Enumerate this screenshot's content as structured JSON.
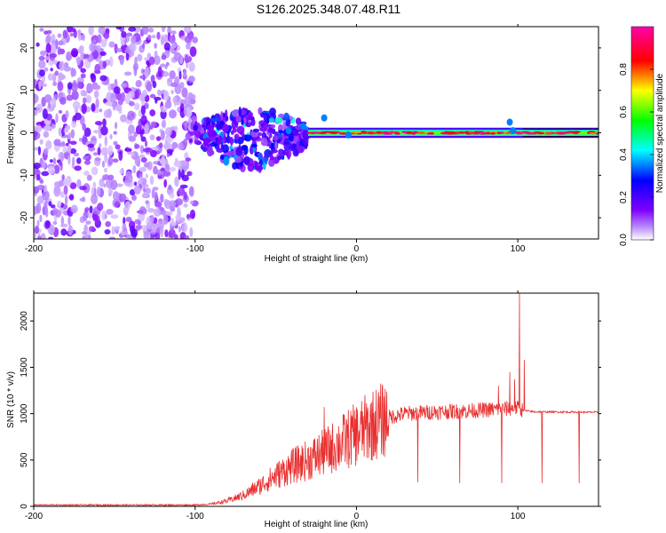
{
  "title": "S126.2025.348.07.48.R11",
  "chart_data": [
    {
      "type": "heatmap",
      "panel": "top",
      "xlabel": "Height of straight line (km)",
      "ylabel": "Frequency (Hz)",
      "xlim": [
        -200,
        150
      ],
      "ylim": [
        -25,
        25
      ],
      "x_ticks": [
        -200,
        -100,
        0,
        100
      ],
      "x_tick_labels": [
        "-200",
        "-100",
        "0",
        "100"
      ],
      "y_ticks": [
        -20,
        -10,
        0,
        10,
        20
      ],
      "y_tick_labels": [
        "-20",
        "-10",
        "0",
        "10",
        "20"
      ],
      "colorbar": {
        "label": "Normalized spectral amplitude",
        "range": [
          0,
          1
        ],
        "ticks": [
          0.0,
          0.2,
          0.4,
          0.6,
          0.8
        ],
        "tick_labels": [
          "0.0",
          "0.2",
          "0.4",
          "0.6",
          "0.8"
        ],
        "colors": [
          "#ffffff",
          "#7f00ff",
          "#0000ff",
          "#00ffff",
          "#00ff00",
          "#ffff00",
          "#ff0000",
          "#ff00ff"
        ]
      },
      "regions": [
        {
          "x": [
            -200,
            -100
          ],
          "freq_spread": 25,
          "description": "noise blobs",
          "amplitude": [
            0.0,
            0.15
          ]
        },
        {
          "x": [
            -100,
            -30
          ],
          "freq_spread": 10,
          "description": "scattered signal",
          "amplitude": [
            0.05,
            0.45
          ]
        },
        {
          "x": [
            -30,
            150
          ],
          "freq_spread": 2,
          "description": "steady band near 0 Hz",
          "amplitude": [
            0.4,
            1.0
          ]
        }
      ]
    },
    {
      "type": "line",
      "panel": "bottom",
      "xlabel": "Height of straight line (km)",
      "ylabel": "SNR (10 * v/v)",
      "xlim": [
        -200,
        150
      ],
      "ylim": [
        0,
        2300
      ],
      "x_ticks": [
        -200,
        -100,
        0,
        100
      ],
      "x_tick_labels": [
        "-200",
        "-100",
        "0",
        "100"
      ],
      "y_ticks": [
        0,
        500,
        1000,
        1500,
        2000
      ],
      "y_tick_labels": [
        "0",
        "500",
        "1000",
        "1500",
        "2000"
      ],
      "color": "#e83030",
      "trend": [
        [
          -200,
          15
        ],
        [
          -150,
          15
        ],
        [
          -100,
          15
        ],
        [
          -90,
          25
        ],
        [
          -80,
          60
        ],
        [
          -70,
          120
        ],
        [
          -60,
          220
        ],
        [
          -50,
          330
        ],
        [
          -40,
          430
        ],
        [
          -30,
          500
        ],
        [
          -20,
          580
        ],
        [
          -10,
          680
        ],
        [
          0,
          780
        ],
        [
          10,
          880
        ],
        [
          20,
          960
        ],
        [
          30,
          1000
        ],
        [
          50,
          1020
        ],
        [
          70,
          1030
        ],
        [
          90,
          1050
        ],
        [
          100,
          1060
        ],
        [
          105,
          1030
        ],
        [
          110,
          1020
        ],
        [
          150,
          1015
        ]
      ],
      "spikes": [
        {
          "x": -20,
          "value": 1070
        },
        {
          "x": 88,
          "value": 1300
        },
        {
          "x": 95,
          "value": 1450
        },
        {
          "x": 98,
          "value": 1370
        },
        {
          "x": 101,
          "value": 2300
        },
        {
          "x": 104,
          "value": 1580
        }
      ],
      "dips": [
        {
          "x": 38,
          "value": 260
        },
        {
          "x": 64,
          "value": 250
        },
        {
          "x": 90,
          "value": 250
        },
        {
          "x": 115,
          "value": 250
        },
        {
          "x": 138,
          "value": 250
        }
      ]
    }
  ]
}
